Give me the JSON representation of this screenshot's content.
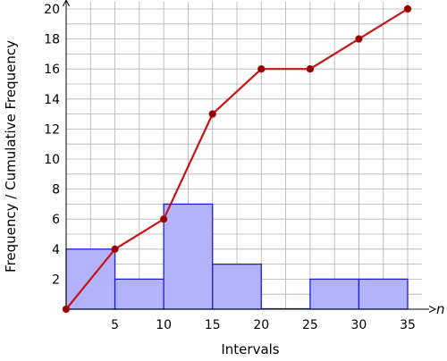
{
  "chart_data": {
    "type": "bar",
    "title": "",
    "xlabel": "Intervals",
    "ylabel": "Frequency / Cumulative Frequency",
    "x_axis_symbol": "n",
    "xlim": [
      0,
      35
    ],
    "ylim": [
      0,
      20
    ],
    "x_ticks": [
      5,
      10,
      15,
      20,
      25,
      30,
      35
    ],
    "y_ticks": [
      2,
      4,
      6,
      8,
      10,
      12,
      14,
      16,
      18,
      20
    ],
    "grid": true,
    "legend": "none",
    "histogram": {
      "bins": [
        [
          0,
          5
        ],
        [
          5,
          10
        ],
        [
          10,
          15
        ],
        [
          15,
          20
        ],
        [
          20,
          25
        ],
        [
          25,
          30
        ],
        [
          30,
          35
        ]
      ],
      "values": [
        4,
        2,
        7,
        3,
        0,
        2,
        2
      ]
    },
    "cumulative_line": {
      "x": [
        0,
        5,
        10,
        15,
        20,
        25,
        30,
        35
      ],
      "y": [
        0,
        4,
        6,
        13,
        16,
        16,
        18,
        20
      ]
    },
    "colors": {
      "bar_fill": "#b3b3fb",
      "bar_stroke": "#1f1fd0",
      "line": "#c81414",
      "marker": "#8b0000",
      "grid": "#b0b0b0",
      "axis": "#000000"
    }
  }
}
